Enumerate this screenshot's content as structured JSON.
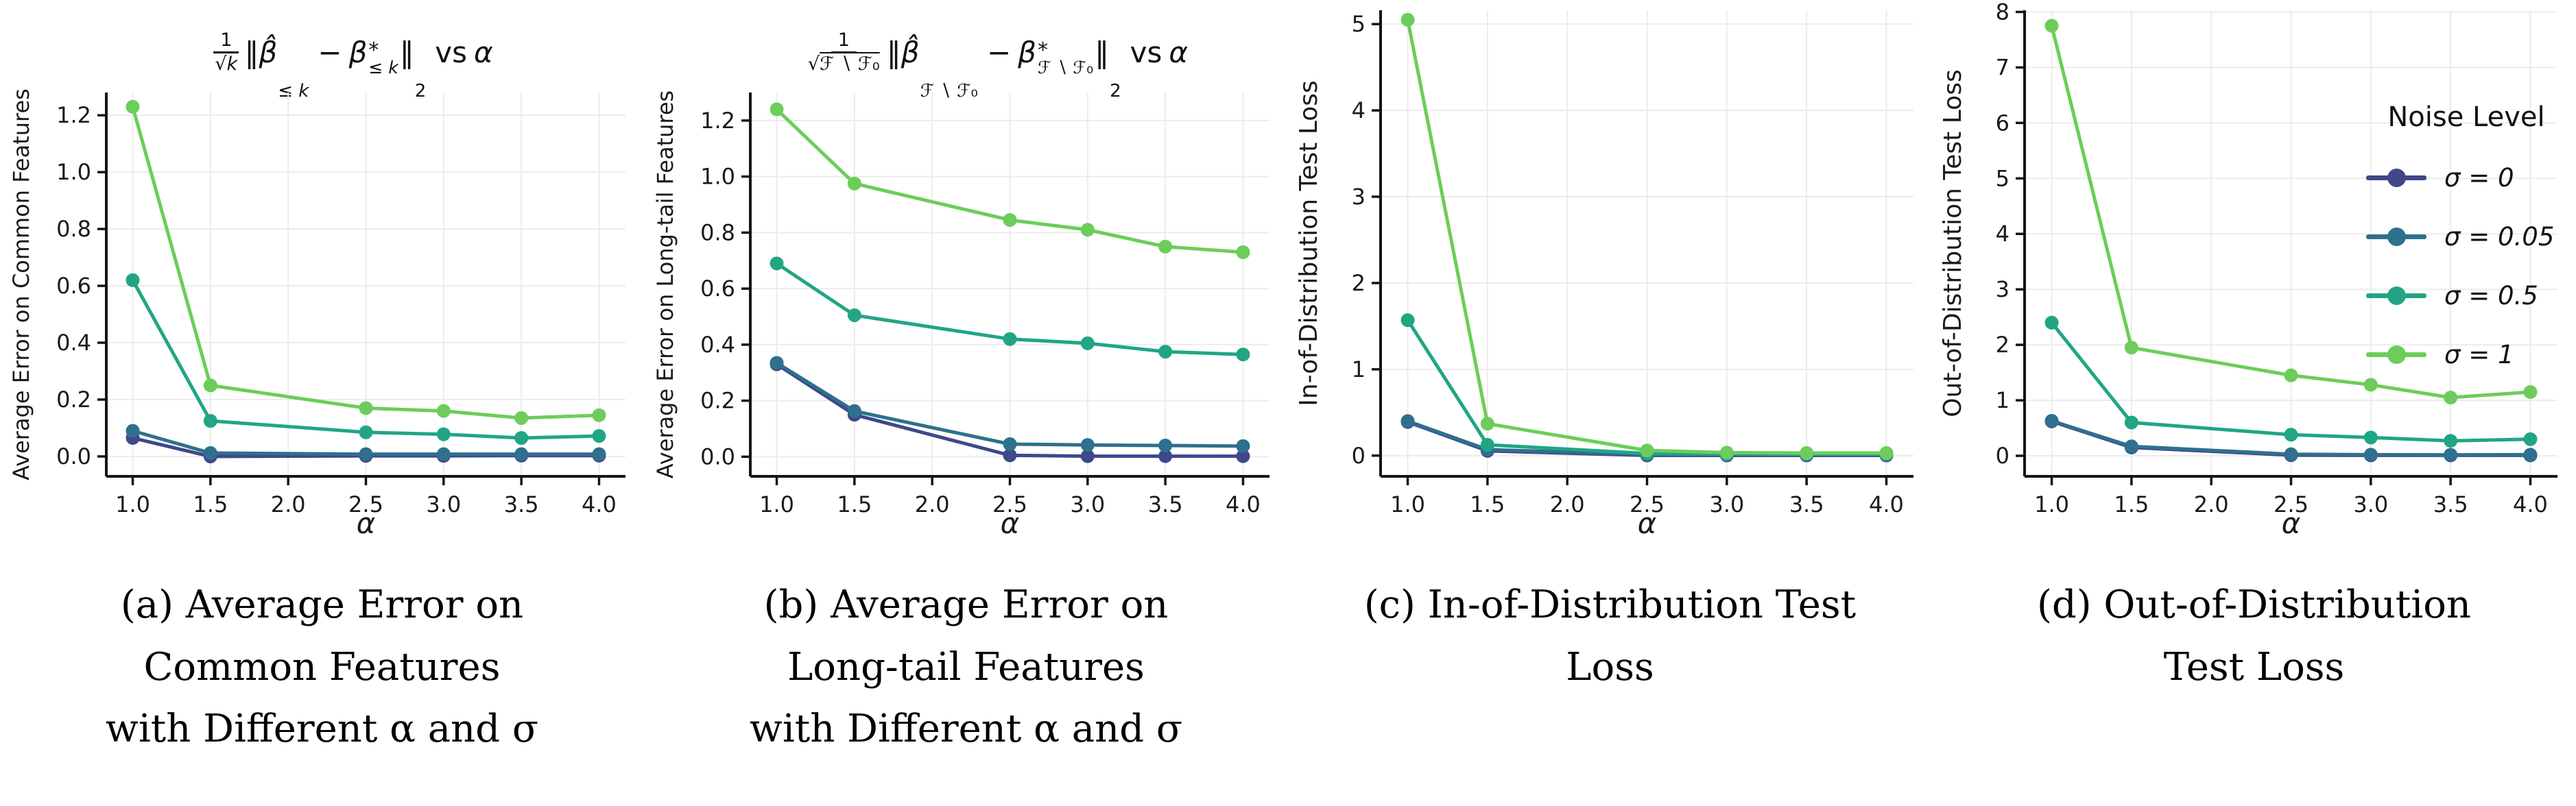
{
  "figure": {
    "legend": {
      "title": "Noise Level",
      "entries": [
        {
          "label": "σ = 0",
          "color": "#3f4889"
        },
        {
          "label": "σ = 0.05",
          "color": "#2e708e"
        },
        {
          "label": "σ = 0.5",
          "color": "#21a585"
        },
        {
          "label": "σ = 1",
          "color": "#6ccd5a"
        }
      ]
    },
    "captions": {
      "a": {
        "line1": "(a) Average Error on",
        "line2": "Common Features",
        "line3": "with Different α and σ"
      },
      "b": {
        "line1": "(b) Average Error on",
        "line2": "Long-tail Features",
        "line3": "with Different α and σ"
      },
      "c": {
        "line1": "(c) In-of-Distribution Test",
        "line2": "Loss",
        "line3": ""
      },
      "d": {
        "line1": "(d) Out-of-Distribution",
        "line2": "Test Loss",
        "line3": ""
      }
    }
  },
  "titles": {
    "a": {
      "num": "1",
      "rad": "√",
      "radbody": "k",
      "open": "‖",
      "bhat": "β̂",
      "sub1": "≤ k",
      "minus": "−",
      "beta": "β",
      "star": "*",
      "sub2": "≤ k",
      "close": "‖",
      "normsub": "2",
      "rest": "vs",
      "alpha": "α"
    },
    "b": {
      "num": "1",
      "rad": "√",
      "radbody": "ℱ ∖ ℱ₀",
      "open": "‖",
      "bhat": "β̂",
      "sub1": "ℱ ∖ ℱ₀",
      "minus": "−",
      "beta": "β",
      "star": "*",
      "sub2": "ℱ ∖ ℱ₀",
      "close": "‖",
      "normsub": "2",
      "rest": "vs",
      "alpha": "α"
    }
  },
  "chart_data": [
    {
      "id": "a",
      "type": "line",
      "title": "(1/√k)‖β̂_{≤k} − β*_{≤k}‖₂ vs α",
      "xlabel": "α",
      "ylabel": "Average Error on Common Features",
      "x": [
        1.0,
        1.5,
        2.5,
        3.0,
        3.5,
        4.0
      ],
      "xticks": [
        1.0,
        1.5,
        2.0,
        2.5,
        3.0,
        3.5,
        4.0
      ],
      "xtick_labels": [
        "1.0",
        "1.5",
        "2.0",
        "2.5",
        "3.0",
        "3.5",
        "4.0"
      ],
      "yticks": [
        0.0,
        0.2,
        0.4,
        0.6,
        0.8,
        1.0,
        1.2
      ],
      "ytick_labels": [
        "0.0",
        "0.2",
        "0.4",
        "0.6",
        "0.8",
        "1.0",
        "1.2"
      ],
      "xlim": [
        0.83,
        4.17
      ],
      "ylim": [
        -0.07,
        1.28
      ],
      "grid": true,
      "series": [
        {
          "name": "σ = 0",
          "color": "#3f4889",
          "values": [
            0.065,
            0.0,
            0.002,
            0.002,
            0.003,
            0.003
          ]
        },
        {
          "name": "σ = 0.05",
          "color": "#2e708e",
          "values": [
            0.09,
            0.012,
            0.008,
            0.008,
            0.008,
            0.008
          ]
        },
        {
          "name": "σ = 0.5",
          "color": "#21a585",
          "values": [
            0.62,
            0.125,
            0.085,
            0.078,
            0.065,
            0.072
          ]
        },
        {
          "name": "σ = 1",
          "color": "#6ccd5a",
          "values": [
            1.23,
            0.25,
            0.17,
            0.16,
            0.135,
            0.145
          ]
        }
      ]
    },
    {
      "id": "b",
      "type": "line",
      "title": "(1/√(ℱ∖ℱ₀))‖β̂_{ℱ∖ℱ₀} − β*_{ℱ∖ℱ₀}‖₂ vs α",
      "xlabel": "α",
      "ylabel": "Average Error on Long-tail Features",
      "x": [
        1.0,
        1.5,
        2.5,
        3.0,
        3.5,
        4.0
      ],
      "xticks": [
        1.0,
        1.5,
        2.0,
        2.5,
        3.0,
        3.5,
        4.0
      ],
      "xtick_labels": [
        "1.0",
        "1.5",
        "2.0",
        "2.5",
        "3.0",
        "3.5",
        "4.0"
      ],
      "yticks": [
        0.0,
        0.2,
        0.4,
        0.6,
        0.8,
        1.0,
        1.2
      ],
      "ytick_labels": [
        "0.0",
        "0.2",
        "0.4",
        "0.6",
        "0.8",
        "1.0",
        "1.2"
      ],
      "xlim": [
        0.83,
        4.17
      ],
      "ylim": [
        -0.07,
        1.3
      ],
      "grid": true,
      "series": [
        {
          "name": "σ = 0",
          "color": "#3f4889",
          "values": [
            0.33,
            0.15,
            0.005,
            0.002,
            0.002,
            0.002
          ]
        },
        {
          "name": "σ = 0.05",
          "color": "#2e708e",
          "values": [
            0.335,
            0.163,
            0.045,
            0.042,
            0.04,
            0.038
          ]
        },
        {
          "name": "σ = 0.5",
          "color": "#21a585",
          "values": [
            0.69,
            0.505,
            0.42,
            0.405,
            0.375,
            0.365
          ]
        },
        {
          "name": "σ = 1",
          "color": "#6ccd5a",
          "values": [
            1.24,
            0.975,
            0.845,
            0.81,
            0.75,
            0.73
          ]
        }
      ]
    },
    {
      "id": "c",
      "type": "line",
      "title": "",
      "xlabel": "α",
      "ylabel": "In-of-Distribution Test Loss",
      "x": [
        1.0,
        1.5,
        2.5,
        3.0,
        3.5,
        4.0
      ],
      "xticks": [
        1.0,
        1.5,
        2.0,
        2.5,
        3.0,
        3.5,
        4.0
      ],
      "xtick_labels": [
        "1.0",
        "1.5",
        "2.0",
        "2.5",
        "3.0",
        "3.5",
        "4.0"
      ],
      "yticks": [
        0,
        1,
        2,
        3,
        4,
        5
      ],
      "ytick_labels": [
        "0",
        "1",
        "2",
        "3",
        "4",
        "5"
      ],
      "xlim": [
        0.83,
        4.17
      ],
      "ylim": [
        -0.24,
        5.16
      ],
      "grid": true,
      "series": [
        {
          "name": "σ = 0",
          "color": "#3f4889",
          "values": [
            0.39,
            0.055,
            0.002,
            0.002,
            0.002,
            0.002
          ]
        },
        {
          "name": "σ = 0.05",
          "color": "#2e708e",
          "values": [
            0.4,
            0.07,
            0.012,
            0.01,
            0.01,
            0.01
          ]
        },
        {
          "name": "σ = 0.5",
          "color": "#21a585",
          "values": [
            1.57,
            0.125,
            0.025,
            0.02,
            0.018,
            0.018
          ]
        },
        {
          "name": "σ = 1",
          "color": "#6ccd5a",
          "values": [
            5.05,
            0.37,
            0.06,
            0.035,
            0.03,
            0.03
          ]
        }
      ]
    },
    {
      "id": "d",
      "type": "line",
      "title": "",
      "xlabel": "α",
      "ylabel": "Out-of-Distribution Test Loss",
      "x": [
        1.0,
        1.5,
        2.5,
        3.0,
        3.5,
        4.0
      ],
      "xticks": [
        1.0,
        1.5,
        2.0,
        2.5,
        3.0,
        3.5,
        4.0
      ],
      "xtick_labels": [
        "1.0",
        "1.5",
        "2.0",
        "2.5",
        "3.0",
        "3.5",
        "4.0"
      ],
      "yticks": [
        0,
        1,
        2,
        3,
        4,
        5,
        6,
        7,
        8
      ],
      "ytick_labels": [
        "0",
        "1",
        "2",
        "3",
        "4",
        "5",
        "6",
        "7",
        "8"
      ],
      "xlim": [
        0.83,
        4.17
      ],
      "ylim": [
        -0.37,
        8.03
      ],
      "grid": true,
      "series": [
        {
          "name": "σ = 0",
          "color": "#3f4889",
          "values": [
            0.62,
            0.15,
            0.012,
            0.008,
            0.008,
            0.008
          ]
        },
        {
          "name": "σ = 0.05",
          "color": "#2e708e",
          "values": [
            0.63,
            0.17,
            0.028,
            0.02,
            0.018,
            0.02
          ]
        },
        {
          "name": "σ = 0.5",
          "color": "#21a585",
          "values": [
            2.4,
            0.6,
            0.38,
            0.33,
            0.27,
            0.3
          ]
        },
        {
          "name": "σ = 1",
          "color": "#6ccd5a",
          "values": [
            7.75,
            1.95,
            1.45,
            1.28,
            1.05,
            1.15
          ]
        }
      ]
    }
  ]
}
